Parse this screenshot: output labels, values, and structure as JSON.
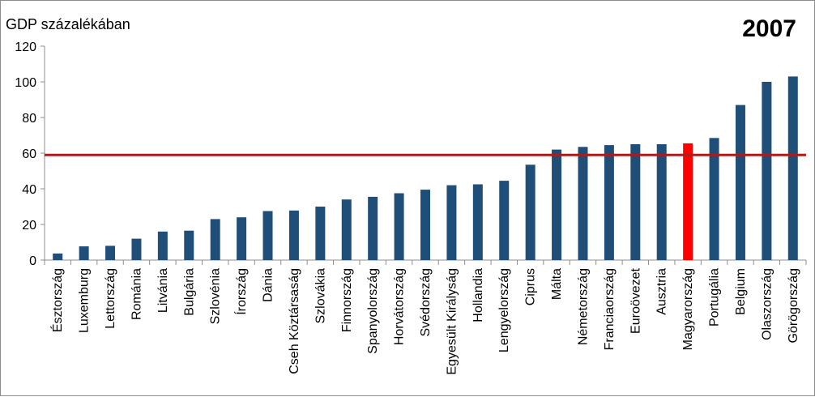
{
  "chart_data": {
    "type": "bar",
    "title": "2007",
    "ylabel": "GDP százalékában",
    "xlabel": "",
    "ylim": [
      0,
      120
    ],
    "yticks": [
      0,
      20,
      40,
      60,
      80,
      100,
      120
    ],
    "grid": false,
    "reference_line": {
      "value": 59,
      "color": "#b01a1a"
    },
    "bar_color": "#1f4e79",
    "highlight_color": "#ff0000",
    "highlight_category": "Magyarország",
    "categories": [
      "Észtország",
      "Luxemburg",
      "Lettország",
      "Románia",
      "Litvánia",
      "Bulgária",
      "Szlovénia",
      "Írország",
      "Dánia",
      "Cseh Köztársaság",
      "Szlovákia",
      "Finnország",
      "Spanyolország",
      "Horvátország",
      "Svédország",
      "Egyesült Királyság",
      "Hollandia",
      "Lengyelország",
      "Ciprus",
      "Málta",
      "Németország",
      "Franciaország",
      "Euroövezet",
      "Ausztria",
      "Magyarország",
      "Portugália",
      "Belgium",
      "Olaszország",
      "Görögország"
    ],
    "values": [
      3.7,
      7.7,
      8.0,
      12.0,
      16.0,
      16.5,
      23.0,
      24.0,
      27.5,
      27.8,
      30.0,
      34.0,
      35.5,
      37.5,
      39.5,
      42.0,
      42.5,
      44.5,
      53.5,
      62.0,
      63.5,
      64.5,
      65.0,
      65.0,
      65.5,
      68.5,
      87.0,
      100.0,
      103.0
    ]
  }
}
